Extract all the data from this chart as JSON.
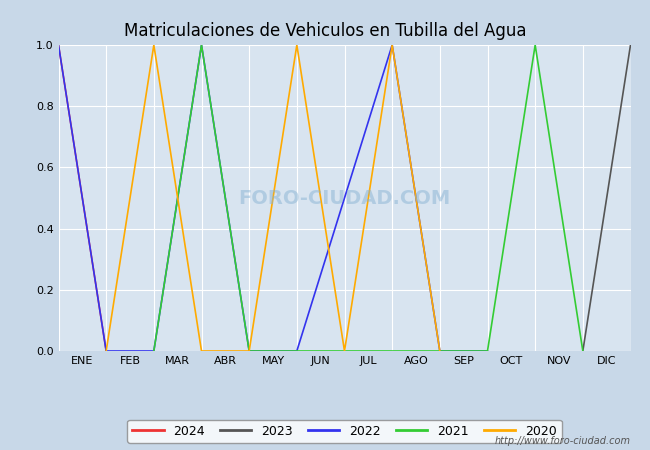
{
  "title": "Matriculaciones de Vehiculos en Tubilla del Agua",
  "title_color": "#000000",
  "bg_color": "#c8d8e8",
  "plot_bg_color": "#d8e4f0",
  "grid_color": "#ffffff",
  "months": [
    "ENE",
    "FEB",
    "MAR",
    "ABR",
    "MAY",
    "JUN",
    "JUL",
    "AGO",
    "SEP",
    "OCT",
    "NOV",
    "DIC"
  ],
  "watermark_plot": "FORO-CIUDAD.COM",
  "watermark_url": "http://www.foro-ciudad.com",
  "series": {
    "2024": {
      "color": "#ee3333",
      "data_x": [
        0.0,
        1.0
      ],
      "data_y": [
        1.0,
        0.0
      ]
    },
    "2023": {
      "color": "#555555",
      "data_x": [
        11.0,
        12.0
      ],
      "data_y": [
        0.0,
        1.0
      ]
    },
    "2022": {
      "color": "#3333ee",
      "data_x": [
        0.0,
        1.0,
        1.0,
        2.0,
        3.0,
        4.0,
        4.0,
        5.0,
        7.0,
        8.0,
        8.0,
        9.0
      ],
      "data_y": [
        1.0,
        0.0,
        0.0,
        0.0,
        1.0,
        0.0,
        0.0,
        0.0,
        1.0,
        0.0,
        0.0,
        0.0
      ]
    },
    "2021": {
      "color": "#33cc33",
      "data_x": [
        2.0,
        3.0,
        3.0,
        4.0,
        4.0,
        5.0,
        9.0,
        10.0,
        10.0,
        11.0
      ],
      "data_y": [
        0.0,
        1.0,
        1.0,
        0.0,
        0.0,
        0.0,
        0.0,
        1.0,
        1.0,
        0.0
      ]
    },
    "2020": {
      "color": "#ffaa00",
      "data_x": [
        1.0,
        2.0,
        2.0,
        3.0,
        4.0,
        5.0,
        5.0,
        6.0,
        6.0,
        7.0,
        7.0,
        8.0
      ],
      "data_y": [
        0.0,
        1.0,
        1.0,
        0.0,
        0.0,
        1.0,
        1.0,
        0.0,
        0.0,
        1.0,
        1.0,
        0.0
      ]
    }
  },
  "legend_order": [
    "2024",
    "2023",
    "2022",
    "2021",
    "2020"
  ],
  "xlim": [
    0,
    12
  ],
  "ylim": [
    0.0,
    1.0
  ],
  "yticks": [
    0.0,
    0.2,
    0.4,
    0.6,
    0.8,
    1.0
  ]
}
